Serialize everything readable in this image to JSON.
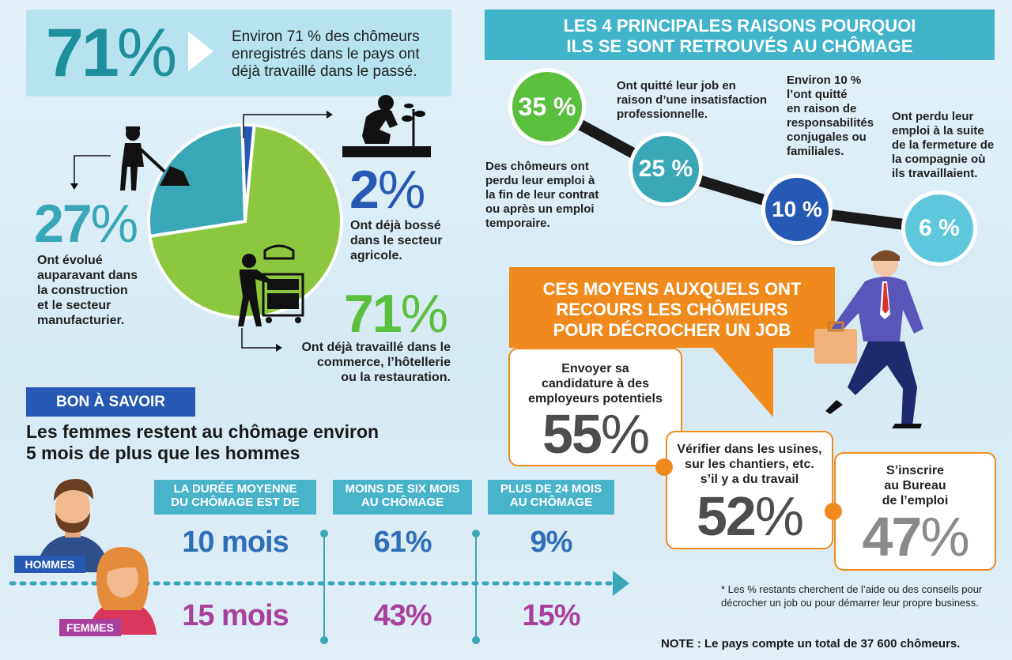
{
  "top_banner": {
    "big_value": "71",
    "pct_sign": "%",
    "text": "Environ 71 % des chômeurs enregistrés dans le pays ont déjà travaillé dans le passé."
  },
  "pie": {
    "slices": [
      {
        "value": 71,
        "color": "#8dc63f"
      },
      {
        "value": 27,
        "color": "#3aa7b8"
      },
      {
        "value": 2,
        "color": "#2559b3"
      }
    ]
  },
  "stat_27": {
    "value": "27",
    "pct": "%",
    "text_lines": [
      "Ont évolué",
      "auparavant dans",
      "la construction",
      "et le secteur",
      "manufacturier."
    ]
  },
  "stat_2": {
    "value": "2",
    "pct": "%",
    "text_lines": [
      "Ont déjà bossé",
      "dans le secteur",
      "agricole."
    ]
  },
  "stat_71": {
    "value": "71",
    "pct": "%",
    "text_lines": [
      "Ont déjà travaillé dans le",
      "commerce, l’hôtellerie",
      "ou la restauration."
    ]
  },
  "reasons": {
    "header_lines": [
      "LES 4 PRINCIPALES RAISONS POURQUOI",
      "ILS SE SONT RETROUVÉS AU CHÔMAGE"
    ],
    "items": [
      {
        "value": "35 %",
        "color": "#5bbf3e",
        "text_lines": [
          "Des chômeurs ont",
          "perdu leur emploi à",
          "la fin de leur contrat",
          "ou après un emploi",
          "temporaire."
        ]
      },
      {
        "value": "25 %",
        "color": "#3aa7b8",
        "text_lines": [
          "Ont quitté leur job en",
          "raison d’une insatisfaction",
          "professionnelle."
        ]
      },
      {
        "value": "10 %",
        "color": "#2559b3",
        "text_lines": [
          "Environ 10 %",
          "l’ont quitté",
          "en raison de",
          "responsabilités",
          "conjugales ou",
          "familiales."
        ]
      },
      {
        "value": "6 %",
        "color": "#5ec7dc",
        "text_lines": [
          "Ont perdu leur",
          "emploi à la suite",
          "de la fermeture de",
          "la compagnie où",
          "ils travaillaient."
        ]
      }
    ]
  },
  "means": {
    "header_lines": [
      "CES MOYENS AUXQUELS ONT",
      "RECOURS LES CHÔMEURS",
      "POUR DÉCROCHER UN JOB"
    ],
    "cards": [
      {
        "text_lines": [
          "Envoyer sa",
          "candidature à des",
          "employeurs potentiels"
        ],
        "value": "55",
        "pct": "%"
      },
      {
        "text_lines": [
          "Vérifier dans les usines,",
          "sur les chantiers, etc.",
          "s’il y a du travail"
        ],
        "value": "52",
        "pct": "%"
      },
      {
        "text_lines": [
          "S’inscrire",
          "au Bureau",
          "de l’emploi"
        ],
        "value": "47",
        "pct": "%"
      }
    ]
  },
  "bon": {
    "tag": "BON À SAVOIR",
    "title_lines": [
      "Les femmes restent au chômage environ",
      "5 mois de plus que les hommes"
    ],
    "columns": [
      {
        "head_lines": [
          "LA DURÉE MOYENNE",
          "DU CHÔMAGE EST DE"
        ],
        "men": "10 mois",
        "women": "15 mois"
      },
      {
        "head_lines": [
          "MOINS DE SIX MOIS",
          "AU CHÔMAGE"
        ],
        "men": "61%",
        "women": "43%"
      },
      {
        "head_lines": [
          "PLUS DE 24 MOIS",
          "AU CHÔMAGE"
        ],
        "men": "9%",
        "women": "15%"
      }
    ],
    "men_label": "HOMMES",
    "women_label": "FEMMES"
  },
  "footnote_lines": [
    "* Les % restants cherchent de l’aide ou des conseils pour",
    "décrocher un job ou pour démarrer leur propre business."
  ],
  "note": "NOTE : Le pays compte un total de 37 600 chômeurs.",
  "colors": {
    "teal": "#3aa7b8",
    "green": "#8dc63f",
    "blue": "#2559b3",
    "orange": "#f08a1c",
    "purple": "#a8409c"
  }
}
